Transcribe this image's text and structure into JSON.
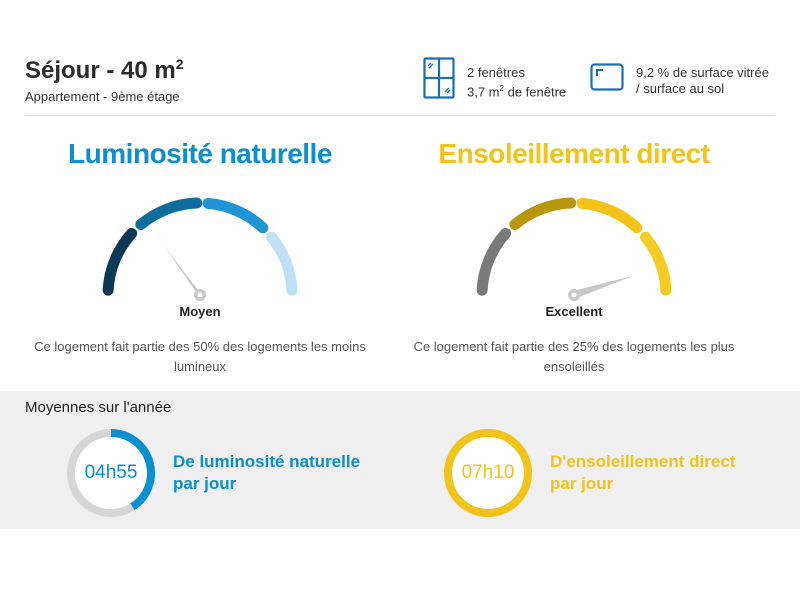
{
  "colors": {
    "light_primary": "#0a8fd1",
    "sun_primary": "#f2c418",
    "text_dark": "#2b2b2b",
    "band_bg": "#efefef"
  },
  "room": {
    "title": "Séjour - 40 m",
    "title_sup": "2",
    "subtitle": "Appartement - 9ème étage"
  },
  "windows": {
    "icon": "window-icon",
    "line1": "2 fenêtres",
    "line2_prefix": "3,7 m",
    "line2_sup": "2",
    "line2_suffix": " de fenêtre"
  },
  "glazing": {
    "icon": "glazed-surface-icon",
    "line1": "9,2 % de surface vitrée",
    "line2": "/ surface au sol"
  },
  "luminosity": {
    "title": "Luminosité naturelle",
    "level": "Moyen",
    "gauge_fraction": 0.3,
    "segment_colors": [
      "#0c3a54",
      "#0f6d9c",
      "#1e96d3",
      "#bfe1f3"
    ],
    "description": "Ce logement fait partie des 50% des logements les moins lumineux"
  },
  "sunshine": {
    "title": "Ensoleillement direct",
    "level": "Excellent",
    "gauge_fraction": 0.9,
    "segment_colors": [
      "#7a7a7a",
      "#b8970f",
      "#f2c418",
      "#f5cc24"
    ],
    "description": "Ce logement fait partie des 25% des logements les plus ensoleillés"
  },
  "yearly": {
    "title": "Moyennes sur l'année",
    "light": {
      "value": "04h55",
      "label_line1": "De luminosité naturelle",
      "label_line2": "par jour",
      "fill_fraction": 0.41
    },
    "sun": {
      "value": "07h10",
      "label_line1": "D'ensoleillement direct",
      "label_line2": "par jour",
      "fill_fraction": 1.0
    }
  }
}
